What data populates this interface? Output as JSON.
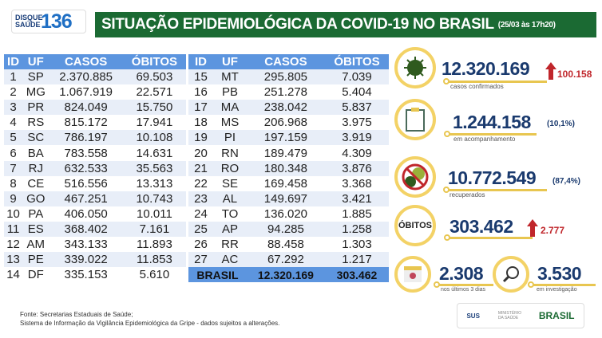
{
  "header": {
    "logo_top": "DISQUE",
    "logo_bottom": "SAÚDE",
    "logo_number": "136",
    "title": "SITUAÇÃO EPIDEMIOLÓGICA DA COVID-19 NO BRASIL",
    "timestamp": "(25/03 às 17h20)"
  },
  "table": {
    "columns": [
      "ID",
      "UF",
      "CASOS",
      "ÓBITOS"
    ],
    "rows_left": [
      [
        "1",
        "SP",
        "2.370.885",
        "69.503"
      ],
      [
        "2",
        "MG",
        "1.067.919",
        "22.571"
      ],
      [
        "3",
        "PR",
        "824.049",
        "15.750"
      ],
      [
        "4",
        "RS",
        "815.172",
        "17.941"
      ],
      [
        "5",
        "SC",
        "786.197",
        "10.108"
      ],
      [
        "6",
        "BA",
        "783.558",
        "14.631"
      ],
      [
        "7",
        "RJ",
        "632.533",
        "35.563"
      ],
      [
        "8",
        "CE",
        "516.556",
        "13.313"
      ],
      [
        "9",
        "GO",
        "467.251",
        "10.743"
      ],
      [
        "10",
        "PA",
        "406.050",
        "10.011"
      ],
      [
        "11",
        "ES",
        "368.402",
        "7.161"
      ],
      [
        "12",
        "AM",
        "343.133",
        "11.893"
      ],
      [
        "13",
        "PE",
        "339.022",
        "11.853"
      ],
      [
        "14",
        "DF",
        "335.153",
        "5.610"
      ]
    ],
    "rows_right": [
      [
        "15",
        "MT",
        "295.805",
        "7.039"
      ],
      [
        "16",
        "PB",
        "251.278",
        "5.404"
      ],
      [
        "17",
        "MA",
        "238.042",
        "5.837"
      ],
      [
        "18",
        "MS",
        "206.968",
        "3.975"
      ],
      [
        "19",
        "PI",
        "197.159",
        "3.919"
      ],
      [
        "20",
        "RN",
        "189.479",
        "4.309"
      ],
      [
        "21",
        "RO",
        "180.348",
        "3.876"
      ],
      [
        "22",
        "SE",
        "169.458",
        "3.368"
      ],
      [
        "23",
        "AL",
        "149.697",
        "3.421"
      ],
      [
        "24",
        "TO",
        "136.020",
        "1.885"
      ],
      [
        "25",
        "AP",
        "94.285",
        "1.258"
      ],
      [
        "26",
        "RR",
        "88.458",
        "1.303"
      ],
      [
        "27",
        "AC",
        "67.292",
        "1.217"
      ]
    ],
    "total": {
      "label": "BRASIL",
      "casos": "12.320.169",
      "obitos": "303.462"
    }
  },
  "stats": {
    "confirmados": {
      "value": "12.320.169",
      "label": "casos confirmados",
      "increase": "100.158",
      "icon": "virus-icon"
    },
    "acompanhamento": {
      "value": "1.244.158",
      "pct": "(10,1%)",
      "label": "em acompanhamento",
      "icon": "clipboard-icon"
    },
    "recuperados": {
      "value": "10.772.549",
      "pct": "(87,4%)",
      "label": "recuperados",
      "icon": "no-virus-icon"
    },
    "obitos": {
      "badge": "ÓBITOS",
      "value": "303.462",
      "increase": "2.777"
    },
    "ultimos": {
      "value": "2.308",
      "label": "nos últimos 3 dias",
      "icon": "calendar-icon"
    },
    "investigacao": {
      "value": "3.530",
      "label": "em investigação",
      "icon": "magnifier-icon"
    }
  },
  "footer": {
    "line1": "Fonte: Secretarias Estaduais de Saúde;",
    "line2": "Sistema de Informação da Vigilância Epidemiológica da Gripe - dados sujeitos a alterações.",
    "sus": "SUS",
    "ministerio": "MINISTÉRIO DA SAÚDE",
    "brasil": "BRASIL"
  },
  "colors": {
    "green": "#1b6a33",
    "blue_header": "#5c95df",
    "navy": "#1a3a6e",
    "red": "#c0262b",
    "gold": "#f3d266"
  }
}
